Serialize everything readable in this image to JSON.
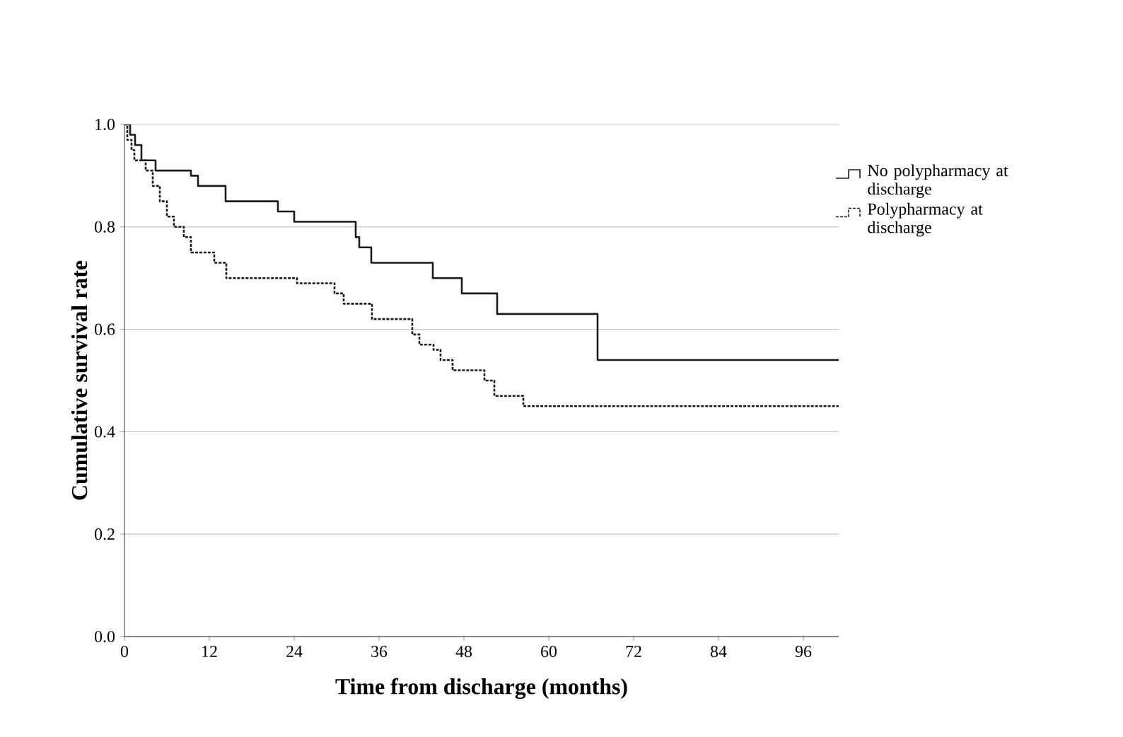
{
  "chart_data": {
    "type": "step",
    "xlabel": "Time from discharge (months)",
    "ylabel": "Cumulative survival rate",
    "xlim": [
      0,
      101
    ],
    "ylim": [
      0,
      1.0
    ],
    "xticks": [
      0,
      12,
      24,
      36,
      48,
      60,
      72,
      84,
      96
    ],
    "yticks": [
      {
        "value": 0,
        "label": "0.0"
      },
      {
        "value": 0.2,
        "label": "0.2"
      },
      {
        "value": 0.4,
        "label": "0.4"
      },
      {
        "value": 0.6,
        "label": "0.6"
      },
      {
        "value": 0.8,
        "label": "0.8"
      },
      {
        "value": 1.0,
        "label": "1.0"
      }
    ],
    "grid": "y",
    "legend": "right",
    "marker": "none",
    "series": [
      {
        "name": "No polypharmacy at discharge",
        "color": "#1a1a1a",
        "line_style": "solid",
        "x": [
          0,
          0.8,
          1.5,
          2.4,
          4.4,
          9.4,
          10.4,
          14.3,
          21.7,
          24,
          32.7,
          33.2,
          34.9,
          43.6,
          47.7,
          52.7,
          66.9,
          101
        ],
        "values": [
          1.0,
          0.98,
          0.96,
          0.93,
          0.91,
          0.9,
          0.88,
          0.85,
          0.83,
          0.81,
          0.78,
          0.76,
          0.73,
          0.7,
          0.67,
          0.63,
          0.54,
          0.54
        ]
      },
      {
        "name": "Polypharmacy at discharge",
        "color": "#1a1a1a",
        "line_style": "dashed",
        "x": [
          0,
          0.4,
          1,
          1.4,
          3,
          4,
          5,
          6,
          7,
          8.4,
          9.4,
          12.7,
          14.4,
          24.4,
          29.7,
          31,
          35,
          40.7,
          41.7,
          43.7,
          44.7,
          46.4,
          50.9,
          52.3,
          56.4,
          101
        ],
        "values": [
          1.0,
          0.97,
          0.95,
          0.93,
          0.91,
          0.88,
          0.85,
          0.82,
          0.8,
          0.78,
          0.75,
          0.73,
          0.7,
          0.69,
          0.67,
          0.65,
          0.62,
          0.59,
          0.57,
          0.56,
          0.54,
          0.52,
          0.5,
          0.47,
          0.45,
          0.45
        ]
      }
    ]
  }
}
